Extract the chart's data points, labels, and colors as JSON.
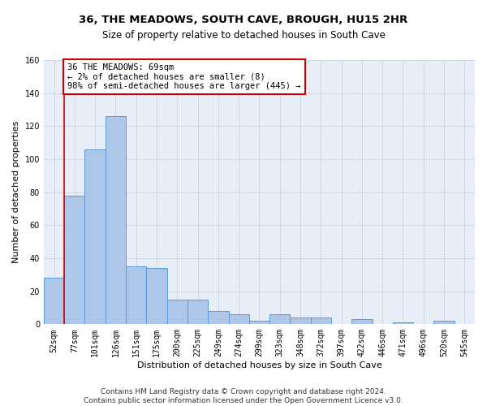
{
  "title_line1": "36, THE MEADOWS, SOUTH CAVE, BROUGH, HU15 2HR",
  "title_line2": "Size of property relative to detached houses in South Cave",
  "xlabel": "Distribution of detached houses by size in South Cave",
  "ylabel": "Number of detached properties",
  "categories": [
    "52sqm",
    "77sqm",
    "101sqm",
    "126sqm",
    "151sqm",
    "175sqm",
    "200sqm",
    "225sqm",
    "249sqm",
    "274sqm",
    "299sqm",
    "323sqm",
    "348sqm",
    "372sqm",
    "397sqm",
    "422sqm",
    "446sqm",
    "471sqm",
    "496sqm",
    "520sqm",
    "545sqm"
  ],
  "bar_heights": [
    28,
    78,
    106,
    126,
    35,
    34,
    15,
    15,
    8,
    6,
    2,
    6,
    4,
    4,
    0,
    3,
    0,
    1,
    0,
    2,
    0
  ],
  "bar_color": "#aec6e8",
  "bar_edge_color": "#5b9bd5",
  "annotation_text": "36 THE MEADOWS: 69sqm\n← 2% of detached houses are smaller (8)\n98% of semi-detached houses are larger (445) →",
  "annotation_box_color": "#ffffff",
  "annotation_box_edge_color": "#cc0000",
  "vline_color": "#cc0000",
  "ylim": [
    0,
    160
  ],
  "yticks": [
    0,
    20,
    40,
    60,
    80,
    100,
    120,
    140,
    160
  ],
  "grid_color": "#d0d8e8",
  "background_color": "#e8eef8",
  "footer_line1": "Contains HM Land Registry data © Crown copyright and database right 2024.",
  "footer_line2": "Contains public sector information licensed under the Open Government Licence v3.0.",
  "title_fontsize": 9.5,
  "subtitle_fontsize": 8.5,
  "axis_label_fontsize": 8,
  "tick_fontsize": 7,
  "annotation_fontsize": 7.5,
  "footer_fontsize": 6.5
}
